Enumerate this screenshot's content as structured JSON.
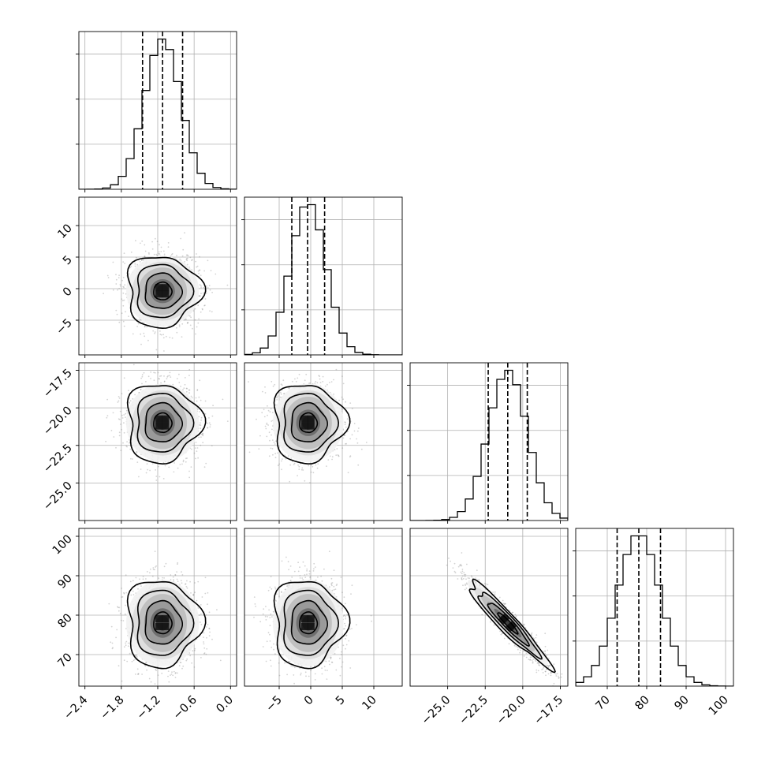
{
  "chart_data": {
    "type": "corner",
    "parameters": [
      {
        "range": [
          -2.5,
          0.1
        ],
        "ticks": [
          -2.4,
          -1.8,
          -1.2,
          -0.6,
          0.0
        ],
        "tick_labels": [
          "−2.4",
          "−1.8",
          "−1.2",
          "−0.6",
          "0.0"
        ],
        "quantiles": [
          -1.45,
          -1.12,
          -0.79
        ],
        "mean": -1.12,
        "sd": 0.3
      },
      {
        "range": [
          -10.5,
          14.5
        ],
        "ticks": [
          -5,
          0,
          5,
          10
        ],
        "tick_labels": [
          "−5",
          "0",
          "5",
          "10"
        ],
        "quantiles": [
          -3.0,
          -0.5,
          2.2
        ],
        "mean": -0.4,
        "sd": 2.8
      },
      {
        "range": [
          -27.5,
          -17.0
        ],
        "ticks": [
          -25.0,
          -22.5,
          -20.0,
          -17.5
        ],
        "tick_labels": [
          "−25.0",
          "−22.5",
          "−20.0",
          "−17.5"
        ],
        "quantiles": [
          -22.3,
          -21.0,
          -19.7
        ],
        "mean": -21.0,
        "sd": 1.3
      },
      {
        "range": [
          62,
          102
        ],
        "ticks": [
          70,
          80,
          90,
          100
        ],
        "tick_labels": [
          "70",
          "80",
          "90",
          "100"
        ],
        "quantiles": [
          72.5,
          78.0,
          83.5
        ],
        "mean": 78.0,
        "sd": 5.5
      }
    ],
    "y_axis_labeled_params": [
      1,
      2,
      3
    ],
    "x_axis_labeled_params": [
      0,
      1,
      2,
      3
    ],
    "correlations": [
      [
        1.0,
        0.0,
        0.0,
        0.0
      ],
      [
        0.0,
        1.0,
        0.0,
        0.0
      ],
      [
        0.0,
        0.0,
        1.0,
        -0.95
      ],
      [
        0.0,
        0.0,
        -0.95,
        1.0
      ]
    ],
    "histogram_bins": 20,
    "contour_levels_sigma": [
      0.5,
      1.0,
      1.5,
      2.0
    ],
    "grid": true,
    "colors": {
      "points": "#808080",
      "density": "#000000",
      "lines": "#000000",
      "grid": "#b0b0b0"
    }
  }
}
